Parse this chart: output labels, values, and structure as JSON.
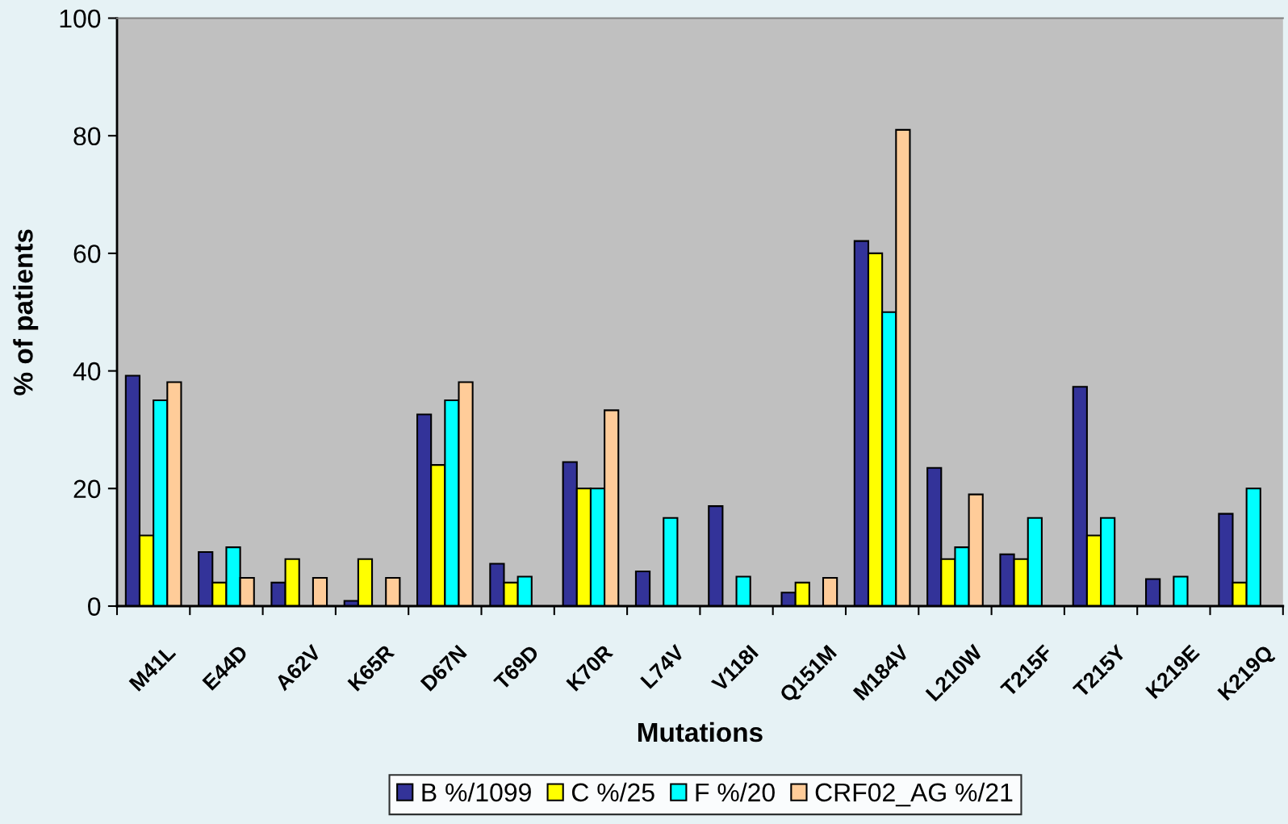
{
  "chart_data": {
    "type": "bar",
    "xlabel": "Mutations",
    "ylabel": "% of patients",
    "categories": [
      "M41L",
      "E44D",
      "A62V",
      "K65R",
      "D67N",
      "T69D",
      "K70R",
      "L74V",
      "V118I",
      "Q151M",
      "M184V",
      "L210W",
      "T215F",
      "T215Y",
      "K219E",
      "K219Q"
    ],
    "series": [
      {
        "name": "B %/1099",
        "color": "#333399",
        "values": [
          39.2,
          9.2,
          4,
          0.9,
          32.6,
          7.2,
          24.5,
          5.9,
          17,
          2.3,
          62.1,
          23.5,
          8.8,
          37.3,
          4.6,
          15.7
        ]
      },
      {
        "name": "C %/25",
        "color": "#ffff00",
        "values": [
          12,
          4,
          8,
          8,
          24,
          4,
          20,
          null,
          null,
          4,
          60,
          8,
          8,
          12,
          null,
          4
        ]
      },
      {
        "name": "F %/20",
        "color": "#00ffff",
        "values": [
          35,
          10,
          null,
          null,
          35,
          5,
          20,
          15,
          5,
          null,
          50,
          10,
          15,
          15,
          5,
          20
        ]
      },
      {
        "name": "CRF02_AG %/21",
        "color": "#ffcc99",
        "values": [
          38.1,
          4.8,
          4.8,
          4.8,
          38.1,
          null,
          33.3,
          null,
          null,
          4.8,
          81,
          19,
          null,
          null,
          null,
          null
        ]
      }
    ],
    "ylim": [
      0,
      100
    ],
    "yticks": [
      0,
      20,
      40,
      60,
      80,
      100
    ],
    "legend": "bottom",
    "grid": false
  }
}
